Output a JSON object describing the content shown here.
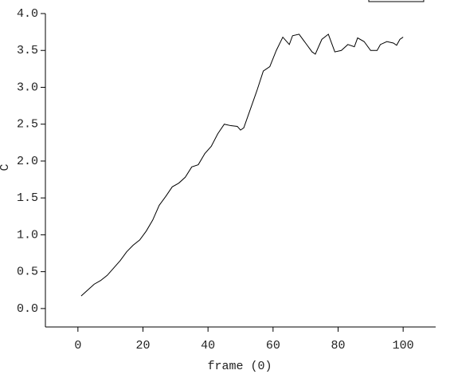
{
  "chart_data": {
    "type": "line",
    "xlabel": "frame (0)",
    "ylabel": "C",
    "xlim": [
      -10,
      110
    ],
    "xticks": [
      0,
      20,
      40,
      60,
      80,
      100
    ],
    "ylim": [
      -0.25,
      4.0
    ],
    "yticks": [
      {
        "value": 0,
        "label": "0.0"
      },
      0.5,
      {
        "value": 1,
        "label": "1.0"
      },
      1.5,
      {
        "value": 2,
        "label": "2.0"
      },
      2.5,
      {
        "value": 3,
        "label": "3.0"
      },
      3.5,
      {
        "value": 4,
        "label": "4.0"
      }
    ],
    "series": [
      {
        "color": "#000000",
        "x": [
          1,
          3,
          5,
          7,
          9,
          11,
          13,
          15,
          17,
          19,
          21,
          23,
          25,
          27,
          29,
          31,
          33,
          35,
          37,
          39,
          41,
          43,
          45,
          47,
          49,
          50,
          51,
          53,
          55,
          57,
          59,
          61,
          63,
          65,
          66,
          68,
          70,
          72,
          73,
          75,
          77,
          79,
          81,
          83,
          85,
          86,
          88,
          90,
          92,
          93,
          95,
          97,
          98,
          99,
          100
        ],
        "values": [
          0.17,
          0.25,
          0.33,
          0.38,
          0.45,
          0.55,
          0.65,
          0.77,
          0.86,
          0.93,
          1.05,
          1.2,
          1.4,
          1.52,
          1.65,
          1.7,
          1.78,
          1.92,
          1.95,
          2.1,
          2.2,
          2.37,
          2.5,
          2.48,
          2.47,
          2.42,
          2.45,
          2.7,
          2.95,
          3.22,
          3.28,
          3.5,
          3.68,
          3.58,
          3.7,
          3.72,
          3.6,
          3.48,
          3.45,
          3.65,
          3.72,
          3.48,
          3.5,
          3.58,
          3.55,
          3.67,
          3.62,
          3.5,
          3.5,
          3.58,
          3.62,
          3.6,
          3.57,
          3.65,
          3.68
        ]
      }
    ]
  }
}
